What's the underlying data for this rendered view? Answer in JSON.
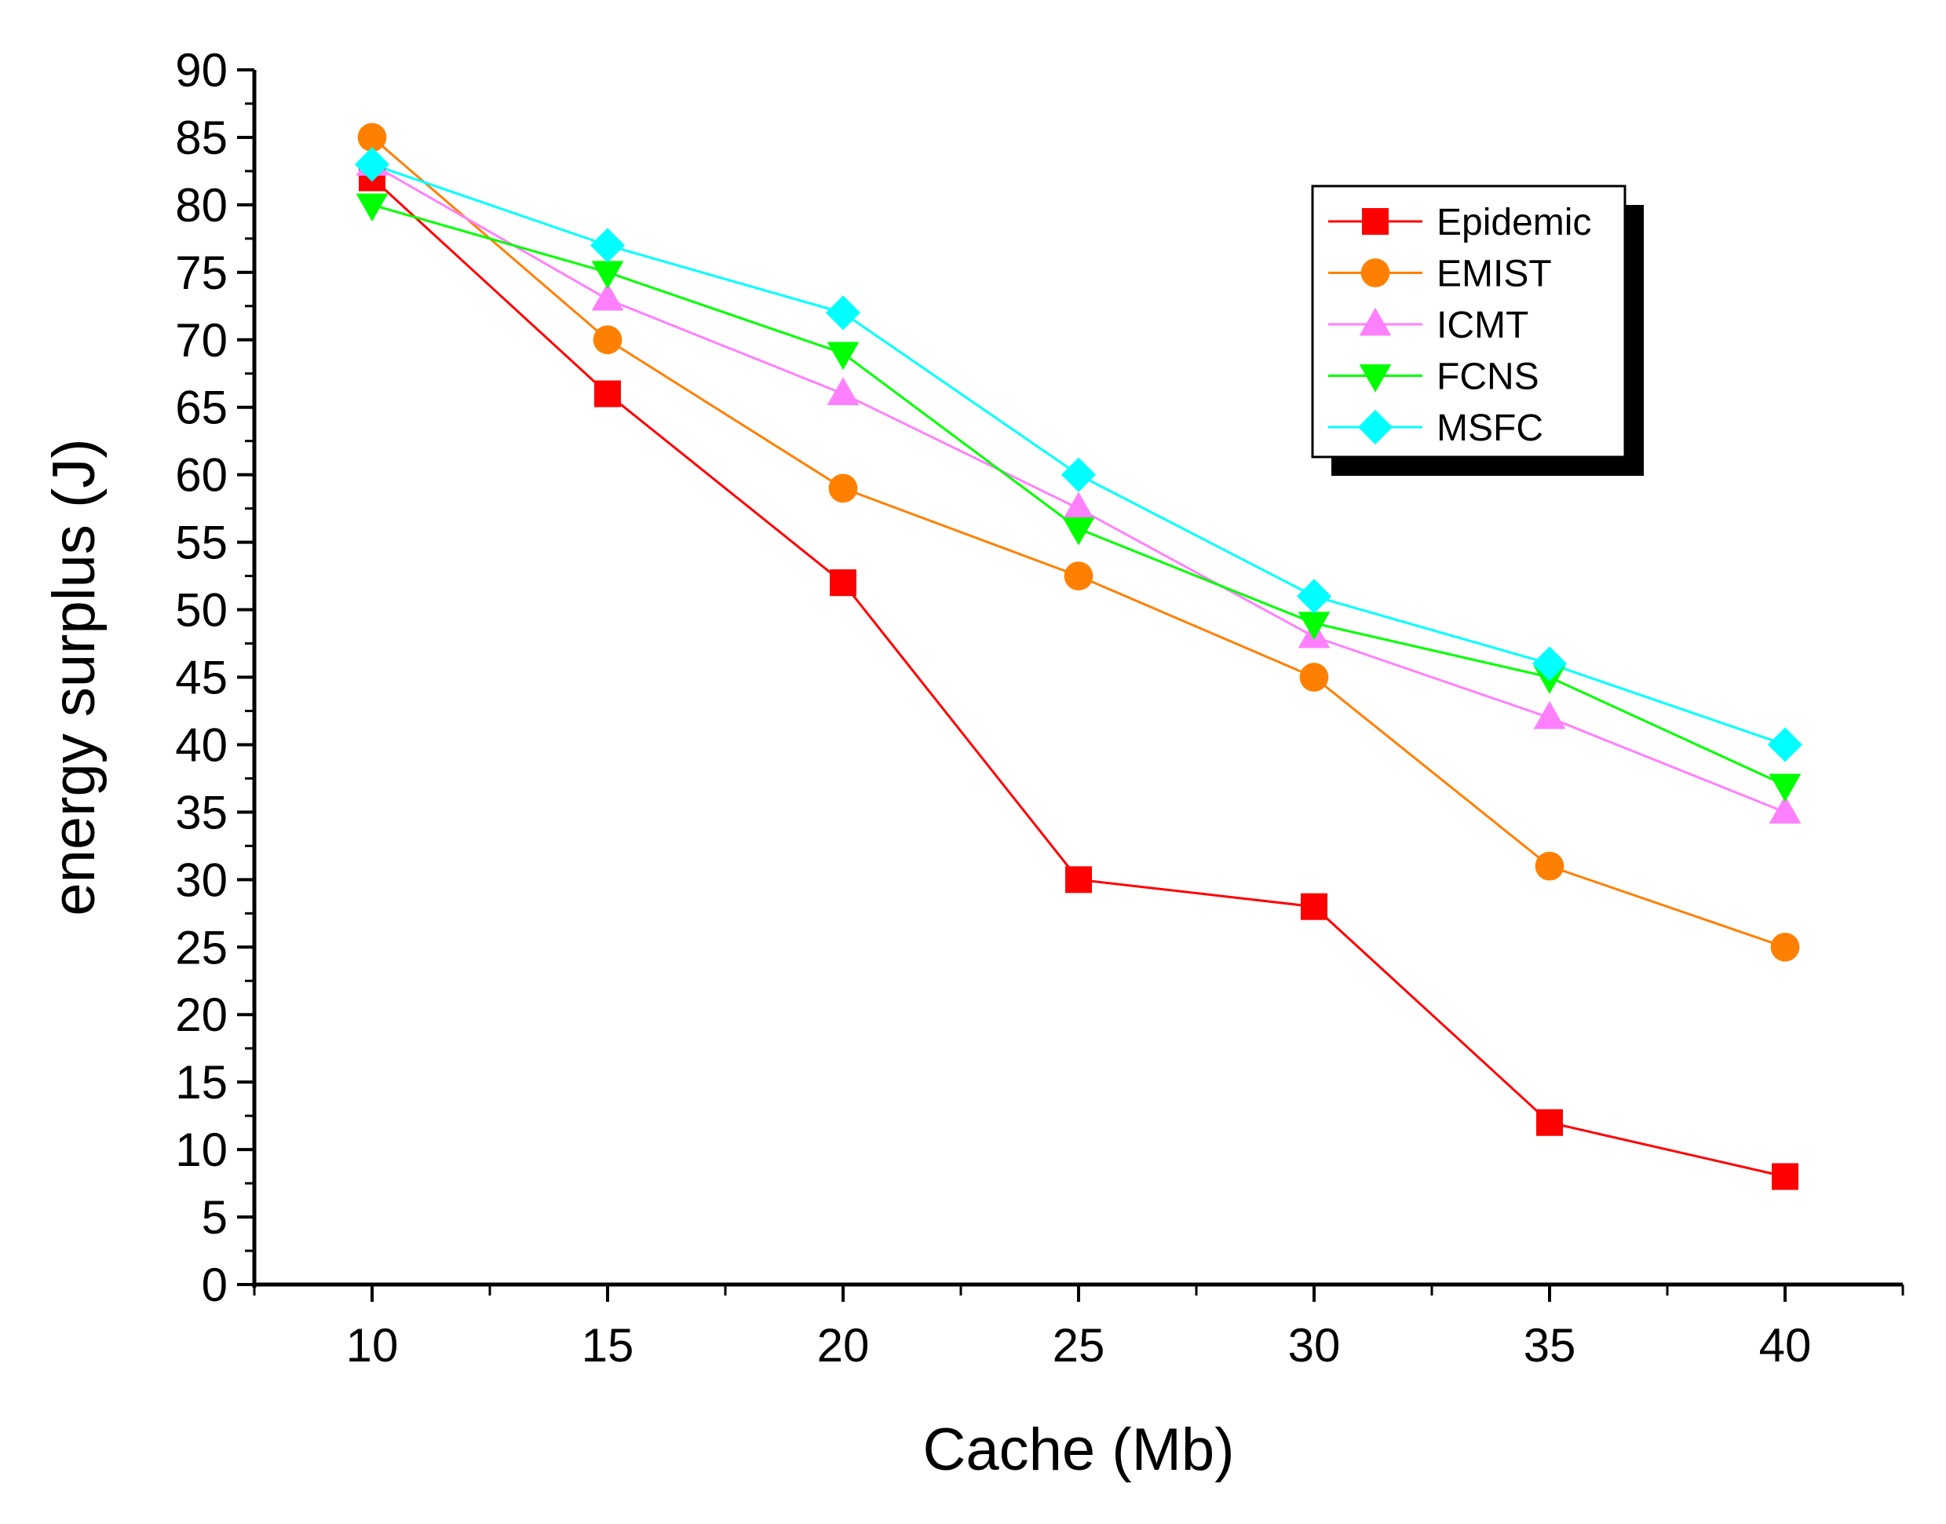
{
  "chart_data": {
    "type": "line",
    "title": "",
    "xlabel": "Cache (Mb)",
    "ylabel": "energy surplus (J)",
    "x": [
      10,
      15,
      20,
      25,
      30,
      35,
      40
    ],
    "xlim": [
      7.5,
      42.5
    ],
    "ylim": [
      0,
      90
    ],
    "xticks": [
      10,
      15,
      20,
      25,
      30,
      35,
      40
    ],
    "yticks": [
      0,
      5,
      10,
      15,
      20,
      25,
      30,
      35,
      40,
      45,
      50,
      55,
      60,
      65,
      70,
      75,
      80,
      85,
      90
    ],
    "grid": false,
    "legend_position": "top-right",
    "series": [
      {
        "name": "Epidemic",
        "color": "#ff0000",
        "marker": "square",
        "values": [
          82,
          66,
          52,
          30,
          28,
          12,
          8
        ]
      },
      {
        "name": "EMIST",
        "color": "#ff8000",
        "marker": "circle",
        "values": [
          85,
          70,
          59,
          52.5,
          45,
          31,
          25
        ]
      },
      {
        "name": "ICMT",
        "color": "#ff80ff",
        "marker": "triangle-up",
        "values": [
          83,
          73,
          66,
          57.5,
          48,
          42,
          35
        ]
      },
      {
        "name": "FCNS",
        "color": "#00ff00",
        "marker": "triangle-down",
        "values": [
          80,
          75,
          69,
          56,
          49,
          45,
          37
        ]
      },
      {
        "name": "MSFC",
        "color": "#00ffff",
        "marker": "diamond",
        "values": [
          83,
          77,
          72,
          60,
          51,
          46,
          40
        ]
      }
    ]
  }
}
